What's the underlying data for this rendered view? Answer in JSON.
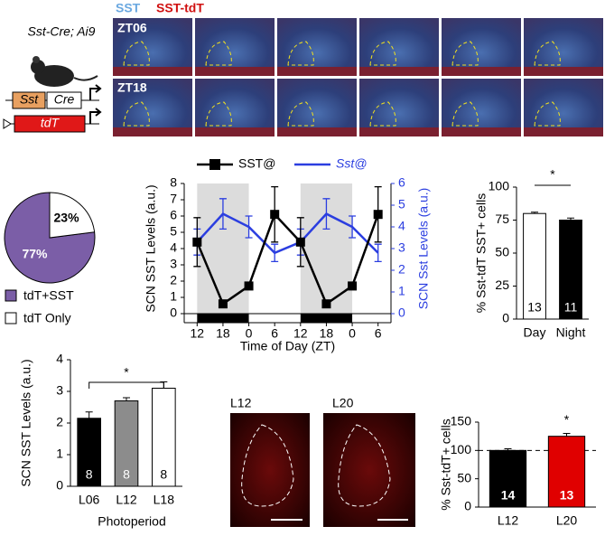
{
  "images": {
    "stain_labels": [
      "SST",
      "SST-tdT"
    ],
    "mouse_label": "Sst-Cre; Ai9",
    "gene_boxes": [
      "Sst",
      "Cre",
      "tdT"
    ],
    "row_labels": [
      "ZT06",
      "ZT18"
    ],
    "photoperiod_images": [
      "L12",
      "L20"
    ]
  },
  "chart_data": [
    {
      "type": "pie",
      "values": [
        77,
        23
      ],
      "value_labels": [
        "77%",
        "23%"
      ],
      "labels": [
        "tdT+SST",
        "tdT Only"
      ],
      "colors": [
        "#7b5ea7",
        "#ffffff"
      ]
    },
    {
      "type": "line",
      "categories": [
        "12",
        "18",
        "0",
        "6",
        "12",
        "18",
        "0",
        "6"
      ],
      "xlabel": "Time of Day (ZT)",
      "ylabel": "SCN SST Levels (a.u.)",
      "y2label": "SCN Sst Levels (a.u.)",
      "ylim": [
        0,
        8
      ],
      "yticks": [
        0,
        1,
        2,
        3,
        4,
        5,
        6,
        7,
        8
      ],
      "y2lim": [
        0,
        6
      ],
      "y2ticks": [
        0,
        1,
        2,
        3,
        4,
        5,
        6
      ],
      "series": [
        {
          "name": "SST@",
          "color": "#000000",
          "values": [
            4.4,
            0.6,
            1.7,
            6.1,
            4.4,
            0.6,
            1.7,
            6.1
          ],
          "errors": [
            1.5,
            0.2,
            0.2,
            1.7,
            1.5,
            0.2,
            0.2,
            1.7
          ]
        },
        {
          "name": "Sst@",
          "color": "#2b3ee0",
          "axis": "y2",
          "values": [
            3.3,
            4.6,
            4.0,
            2.8,
            3.3,
            4.6,
            4.0,
            2.8
          ],
          "errors": [
            0.6,
            0.7,
            0.5,
            0.4,
            0.6,
            0.7,
            0.5,
            0.4
          ]
        }
      ]
    },
    {
      "type": "bar",
      "categories": [
        "Day",
        "Night"
      ],
      "values": [
        80,
        75
      ],
      "errors": [
        1,
        1.5
      ],
      "n": [
        13,
        11
      ],
      "colors": [
        "#ffffff",
        "#000000"
      ],
      "ylim": [
        0,
        100
      ],
      "yticks": [
        0,
        25,
        50,
        75,
        100
      ],
      "ylabel": "% Sst-tdT SST+ cells",
      "annotation": "*"
    },
    {
      "type": "bar",
      "categories": [
        "L06",
        "L12",
        "L18"
      ],
      "values": [
        2.15,
        2.7,
        3.1
      ],
      "errors": [
        0.2,
        0.1,
        0.2
      ],
      "n": [
        8,
        8,
        8
      ],
      "colors": [
        "#000000",
        "#8c8c8c",
        "#ffffff"
      ],
      "ylim": [
        0,
        4
      ],
      "yticks": [
        0,
        1,
        2,
        3,
        4
      ],
      "ylabel": "SCN SST Levels (a.u.)",
      "xlabel": "Photoperiod",
      "annotation": "*"
    },
    {
      "type": "bar",
      "categories": [
        "L12",
        "L20"
      ],
      "values": [
        100,
        125
      ],
      "errors": [
        3,
        5
      ],
      "n": [
        14,
        13
      ],
      "colors": [
        "#000000",
        "#e00000"
      ],
      "ylim": [
        0,
        150
      ],
      "yticks": [
        0,
        50,
        100,
        150
      ],
      "reference_line": 100,
      "ylabel": "% Sst-tdT+ cells",
      "annotation": "*"
    }
  ]
}
